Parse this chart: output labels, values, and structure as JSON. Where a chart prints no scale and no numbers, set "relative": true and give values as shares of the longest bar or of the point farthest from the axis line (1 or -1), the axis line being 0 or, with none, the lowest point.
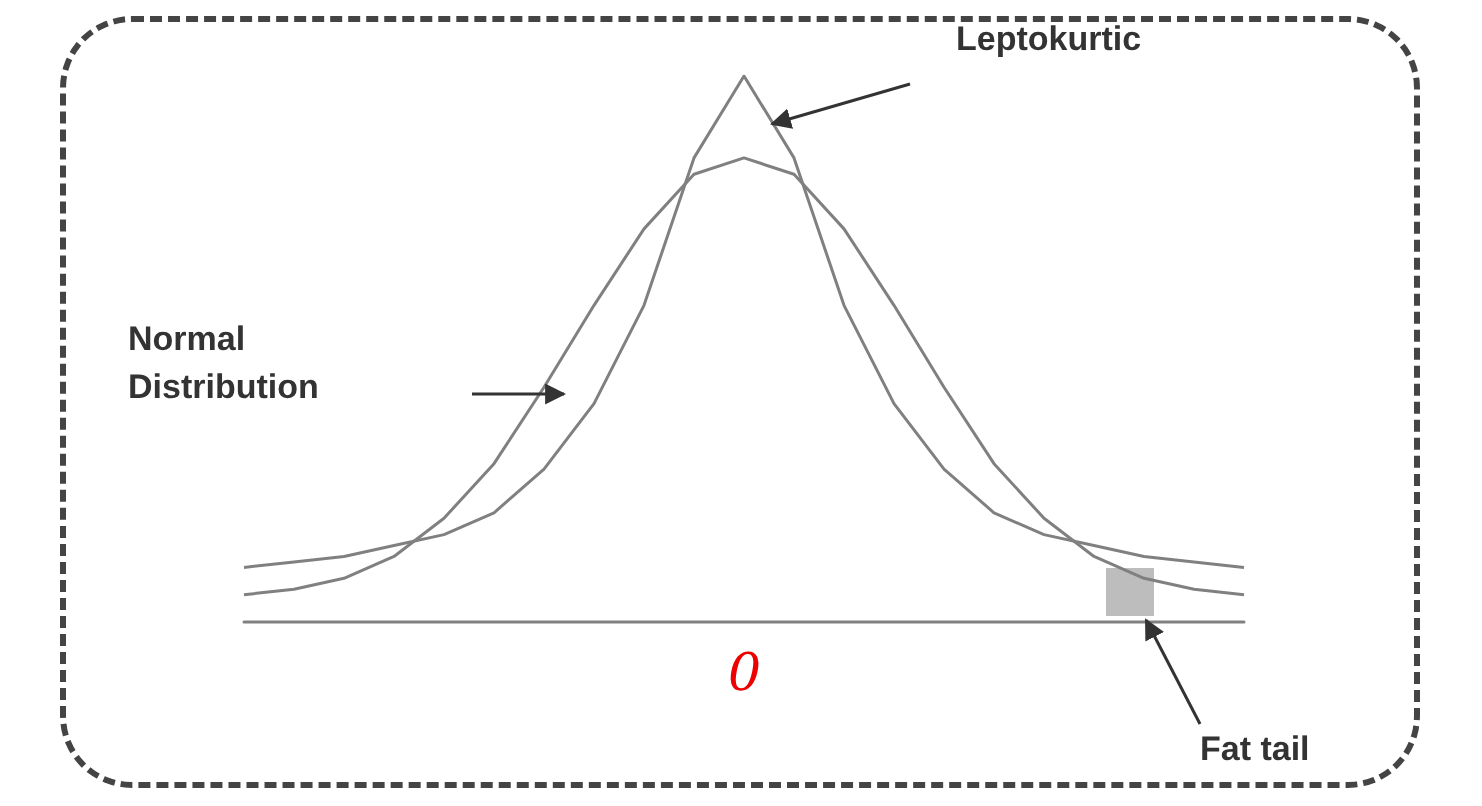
{
  "chart_data": {
    "type": "line",
    "relative": true,
    "categories": [
      null,
      null,
      null,
      null,
      null,
      null,
      null,
      null,
      null,
      null,
      null,
      null,
      null,
      null,
      null,
      null,
      null,
      null,
      null,
      null,
      null
    ],
    "series": [
      {
        "color": "#808080",
        "values": [
          0.05,
          0.06,
          0.08,
          0.12,
          0.19,
          0.29,
          0.43,
          0.58,
          0.72,
          0.82,
          0.85,
          0.82,
          0.72,
          0.58,
          0.43,
          0.29,
          0.19,
          0.12,
          0.08,
          0.06,
          0.05
        ]
      },
      {
        "color": "#808080",
        "values": [
          0.1,
          0.11,
          0.12,
          0.14,
          0.16,
          0.2,
          0.28,
          0.4,
          0.58,
          0.85,
          1,
          0.85,
          0.58,
          0.4,
          0.28,
          0.2,
          0.16,
          0.14,
          0.12,
          0.11,
          0.1
        ]
      }
    ],
    "annotations": [
      "Leptokurtic",
      "Normal Distribution",
      "Fat tail",
      "0"
    ],
    "marker": "none",
    "line_style": "solid"
  }
}
